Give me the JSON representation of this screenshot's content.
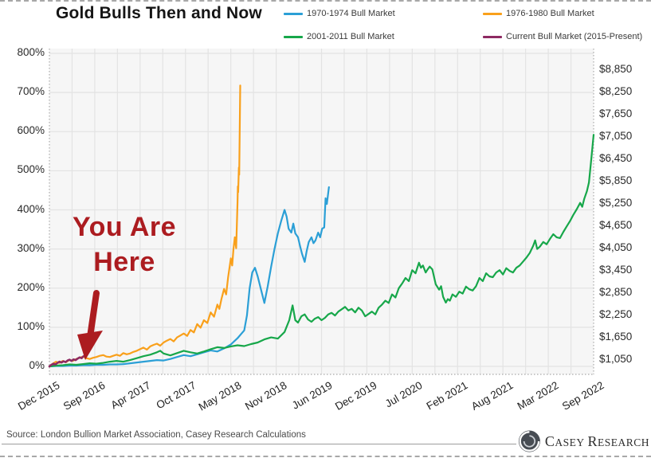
{
  "chart_data": {
    "type": "line",
    "title": "Gold Bulls Then and Now",
    "legend_position": "top",
    "grid": true,
    "x_axis": {
      "labels": [
        "Dec 2015",
        "Sep 2016",
        "Apr 2017",
        "Oct 2017",
        "May 2018",
        "Nov 2018",
        "Jun 2019",
        "Dec 2019",
        "Jul 2020",
        "Feb 2021",
        "Aug 2021",
        "Mar 2022",
        "Sep 2022"
      ],
      "months_total": 81
    },
    "y_axis_left": {
      "unit": "%",
      "min": 0,
      "max": 800,
      "labels": [
        "800%",
        "700%",
        "600%",
        "500%",
        "400%",
        "300%",
        "200%",
        "100%",
        "0%"
      ]
    },
    "y_axis_right": {
      "unit": "USD per oz",
      "labels": [
        "$8,850",
        "$8,250",
        "$7,650",
        "$7,050",
        "$6,450",
        "$5,850",
        "$5,250",
        "$4,650",
        "$4,050",
        "$3,450",
        "$2,850",
        "$2,250",
        "$1,650",
        "$1,050"
      ]
    },
    "series": [
      {
        "name": "1970-1974 Bull Market",
        "color": "#2B9FD6",
        "points": [
          [
            0,
            0
          ],
          [
            1,
            1
          ],
          [
            2,
            1
          ],
          [
            3,
            2
          ],
          [
            4,
            2
          ],
          [
            5,
            3
          ],
          [
            6,
            3
          ],
          [
            7,
            4
          ],
          [
            8,
            4
          ],
          [
            9,
            5
          ],
          [
            10,
            5
          ],
          [
            11,
            6
          ],
          [
            12,
            8
          ],
          [
            13,
            10
          ],
          [
            14,
            12
          ],
          [
            15,
            14
          ],
          [
            16,
            16
          ],
          [
            17,
            15
          ],
          [
            18,
            19
          ],
          [
            19,
            24
          ],
          [
            20,
            29
          ],
          [
            21,
            26
          ],
          [
            22,
            31
          ],
          [
            23,
            36
          ],
          [
            24,
            41
          ],
          [
            25,
            38
          ],
          [
            26,
            46
          ],
          [
            27,
            56
          ],
          [
            28,
            72
          ],
          [
            28.5,
            82
          ],
          [
            29,
            92
          ],
          [
            29.4,
            130
          ],
          [
            29.8,
            200
          ],
          [
            30.2,
            240
          ],
          [
            30.6,
            252
          ],
          [
            31,
            230
          ],
          [
            31.5,
            196
          ],
          [
            32,
            162
          ],
          [
            32.5,
            205
          ],
          [
            33,
            255
          ],
          [
            33.5,
            300
          ],
          [
            34,
            340
          ],
          [
            34.5,
            372
          ],
          [
            35,
            400
          ],
          [
            35.3,
            383
          ],
          [
            35.6,
            352
          ],
          [
            36,
            342
          ],
          [
            36.3,
            365
          ],
          [
            36.6,
            340
          ],
          [
            37,
            330
          ],
          [
            37.3,
            308
          ],
          [
            37.6,
            288
          ],
          [
            38,
            267
          ],
          [
            38.3,
            295
          ],
          [
            38.6,
            318
          ],
          [
            39,
            330
          ],
          [
            39.3,
            315
          ],
          [
            39.6,
            322
          ],
          [
            40,
            342
          ],
          [
            40.3,
            330
          ],
          [
            40.6,
            352
          ],
          [
            40.9,
            355
          ],
          [
            41.1,
            430
          ],
          [
            41.3,
            415
          ],
          [
            41.6,
            458
          ]
        ]
      },
      {
        "name": "1976-1980 Bull Market",
        "color": "#F9A01B",
        "points": [
          [
            0,
            0
          ],
          [
            0.5,
            7
          ],
          [
            1,
            12
          ],
          [
            1.5,
            9
          ],
          [
            2,
            14
          ],
          [
            2.5,
            11
          ],
          [
            3,
            17
          ],
          [
            3.5,
            14
          ],
          [
            4,
            19
          ],
          [
            4.5,
            22
          ],
          [
            5,
            25
          ],
          [
            5.5,
            21
          ],
          [
            6,
            19
          ],
          [
            6.5,
            22
          ],
          [
            7,
            24
          ],
          [
            7.5,
            27
          ],
          [
            8,
            29
          ],
          [
            8.5,
            25
          ],
          [
            9,
            24
          ],
          [
            9.5,
            27
          ],
          [
            10,
            30
          ],
          [
            10.5,
            27
          ],
          [
            11,
            34
          ],
          [
            11.5,
            31
          ],
          [
            12,
            33
          ],
          [
            12.5,
            37
          ],
          [
            13,
            40
          ],
          [
            13.5,
            44
          ],
          [
            14,
            48
          ],
          [
            14.5,
            43
          ],
          [
            15,
            51
          ],
          [
            15.5,
            55
          ],
          [
            16,
            58
          ],
          [
            16.5,
            53
          ],
          [
            17,
            61
          ],
          [
            17.5,
            66
          ],
          [
            18,
            70
          ],
          [
            18.5,
            64
          ],
          [
            19,
            74
          ],
          [
            19.5,
            79
          ],
          [
            20,
            84
          ],
          [
            20.5,
            78
          ],
          [
            21,
            93
          ],
          [
            21.5,
            87
          ],
          [
            22,
            108
          ],
          [
            22.5,
            99
          ],
          [
            23,
            118
          ],
          [
            23.5,
            111
          ],
          [
            24,
            138
          ],
          [
            24.5,
            127
          ],
          [
            25,
            158
          ],
          [
            25.3,
            147
          ],
          [
            25.6,
            172
          ],
          [
            26,
            198
          ],
          [
            26.3,
            184
          ],
          [
            26.6,
            228
          ],
          [
            27,
            276
          ],
          [
            27.2,
            258
          ],
          [
            27.4,
            300
          ],
          [
            27.6,
            330
          ],
          [
            27.8,
            302
          ],
          [
            28,
            420
          ],
          [
            28.05,
            460
          ],
          [
            28.1,
            445
          ],
          [
            28.2,
            508
          ],
          [
            28.25,
            490
          ],
          [
            28.4,
            718
          ]
        ]
      },
      {
        "name": "2001-2011 Bull Market",
        "color": "#17A74A",
        "points": [
          [
            0,
            0
          ],
          [
            1,
            2
          ],
          [
            2,
            3
          ],
          [
            3,
            5
          ],
          [
            4,
            4
          ],
          [
            5,
            6
          ],
          [
            6,
            8
          ],
          [
            7,
            7
          ],
          [
            8,
            9
          ],
          [
            9,
            12
          ],
          [
            10,
            14
          ],
          [
            11,
            12
          ],
          [
            12,
            16
          ],
          [
            13,
            21
          ],
          [
            14,
            26
          ],
          [
            15,
            30
          ],
          [
            16,
            36
          ],
          [
            16.5,
            40
          ],
          [
            17,
            33
          ],
          [
            18,
            28
          ],
          [
            19,
            34
          ],
          [
            20,
            40
          ],
          [
            21,
            36
          ],
          [
            22,
            33
          ],
          [
            23,
            38
          ],
          [
            24,
            44
          ],
          [
            25,
            49
          ],
          [
            26,
            47
          ],
          [
            27,
            51
          ],
          [
            28,
            54
          ],
          [
            29,
            52
          ],
          [
            30,
            57
          ],
          [
            31,
            61
          ],
          [
            32,
            69
          ],
          [
            33,
            74
          ],
          [
            34,
            71
          ],
          [
            35,
            88
          ],
          [
            35.7,
            118
          ],
          [
            36.2,
            156
          ],
          [
            36.6,
            118
          ],
          [
            37,
            112
          ],
          [
            37.5,
            128
          ],
          [
            38,
            133
          ],
          [
            38.5,
            120
          ],
          [
            39,
            114
          ],
          [
            39.5,
            122
          ],
          [
            40,
            126
          ],
          [
            40.5,
            118
          ],
          [
            41,
            124
          ],
          [
            41.5,
            133
          ],
          [
            42,
            137
          ],
          [
            42.5,
            130
          ],
          [
            43,
            140
          ],
          [
            43.5,
            146
          ],
          [
            44,
            152
          ],
          [
            44.5,
            143
          ],
          [
            45,
            147
          ],
          [
            45.5,
            138
          ],
          [
            46,
            150
          ],
          [
            46.5,
            143
          ],
          [
            47,
            128
          ],
          [
            47.5,
            134
          ],
          [
            48,
            140
          ],
          [
            48.5,
            133
          ],
          [
            49,
            150
          ],
          [
            49.5,
            158
          ],
          [
            50,
            168
          ],
          [
            50.5,
            162
          ],
          [
            51,
            184
          ],
          [
            51.5,
            176
          ],
          [
            52,
            200
          ],
          [
            52.5,
            212
          ],
          [
            53,
            226
          ],
          [
            53.5,
            218
          ],
          [
            54,
            246
          ],
          [
            54.5,
            238
          ],
          [
            55,
            265
          ],
          [
            55.3,
            252
          ],
          [
            55.6,
            258
          ],
          [
            56,
            240
          ],
          [
            56.3,
            248
          ],
          [
            56.6,
            255
          ],
          [
            57,
            248
          ],
          [
            57.5,
            210
          ],
          [
            58,
            196
          ],
          [
            58.3,
            205
          ],
          [
            58.6,
            178
          ],
          [
            59,
            163
          ],
          [
            59.3,
            172
          ],
          [
            59.6,
            168
          ],
          [
            60,
            184
          ],
          [
            60.5,
            178
          ],
          [
            61,
            191
          ],
          [
            61.5,
            186
          ],
          [
            62,
            204
          ],
          [
            62.5,
            197
          ],
          [
            63,
            194
          ],
          [
            63.5,
            205
          ],
          [
            64,
            226
          ],
          [
            64.5,
            218
          ],
          [
            65,
            238
          ],
          [
            65.5,
            230
          ],
          [
            66,
            228
          ],
          [
            66.5,
            240
          ],
          [
            67,
            246
          ],
          [
            67.5,
            235
          ],
          [
            68,
            251
          ],
          [
            68.5,
            244
          ],
          [
            69,
            240
          ],
          [
            69.5,
            252
          ],
          [
            70,
            258
          ],
          [
            70.5,
            268
          ],
          [
            71,
            278
          ],
          [
            71.5,
            290
          ],
          [
            72,
            308
          ],
          [
            72.3,
            322
          ],
          [
            72.6,
            300
          ],
          [
            73,
            306
          ],
          [
            73.5,
            318
          ],
          [
            74,
            312
          ],
          [
            74.5,
            326
          ],
          [
            75,
            338
          ],
          [
            75.5,
            330
          ],
          [
            76,
            328
          ],
          [
            76.5,
            344
          ],
          [
            77,
            358
          ],
          [
            77.5,
            372
          ],
          [
            78,
            388
          ],
          [
            78.5,
            402
          ],
          [
            79,
            418
          ],
          [
            79.3,
            408
          ],
          [
            79.6,
            428
          ],
          [
            80,
            448
          ],
          [
            80.3,
            470
          ],
          [
            80.6,
            520
          ],
          [
            81,
            592
          ]
        ]
      },
      {
        "name": "Current Bull Market (2015-Present)",
        "color": "#8E2A62",
        "points": [
          [
            0,
            0
          ],
          [
            0.3,
            4
          ],
          [
            0.6,
            7
          ],
          [
            0.9,
            5
          ],
          [
            1.2,
            9
          ],
          [
            1.5,
            12
          ],
          [
            1.8,
            10
          ],
          [
            2.1,
            13
          ],
          [
            2.4,
            11
          ],
          [
            2.7,
            15
          ],
          [
            3,
            17
          ],
          [
            3.3,
            14
          ],
          [
            3.6,
            18
          ],
          [
            3.9,
            16
          ],
          [
            4.2,
            20
          ],
          [
            4.5,
            23
          ],
          [
            4.8,
            21
          ],
          [
            5,
            25
          ],
          [
            5.2,
            27
          ],
          [
            5.4,
            24
          ]
        ]
      }
    ],
    "annotation": {
      "line1": "You Are",
      "line2": "Here",
      "color": "#AC1C20"
    },
    "style": {
      "plot_background": "#f6f6f6",
      "grid_color": "#e3e3e3",
      "dotted_edge_color": "#b5b5b5"
    }
  },
  "footer": {
    "source": "Source: London Bullion Market Association, Casey Research Calculations",
    "logo": {
      "part1": "C",
      "part2": "ASEY",
      "part3": "R",
      "part4": "ESEARCH"
    }
  }
}
